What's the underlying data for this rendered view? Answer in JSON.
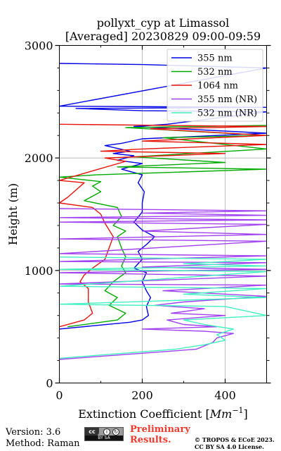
{
  "chart_data": {
    "type": "line",
    "title": "pollyxt_cyp at Limassol",
    "subtitle": "[Averaged] 20230829 09:00-09:59",
    "xlabel": "Extinction Coefficient [",
    "xlabel_unit": "Mm",
    "xlabel_exp": "−1",
    "xlabel_close": "]",
    "ylabel": "Height (m)",
    "xlim": [
      0,
      500
    ],
    "ylim": [
      0,
      3000
    ],
    "xticks": [
      0,
      200,
      400
    ],
    "yticks": [
      0,
      1000,
      2000,
      3000
    ],
    "x_minor_step": 100,
    "y_minor_step": 200,
    "grid": true,
    "legend_position": "top-right",
    "series": [
      {
        "name": "355 nm",
        "color": "#0000e6",
        "points": [
          [
            0,
            2840
          ],
          [
            200,
            2830
          ],
          [
            500,
            2800
          ],
          [
            0,
            2460
          ],
          [
            500,
            2450
          ],
          [
            40,
            2440
          ],
          [
            200,
            2420
          ],
          [
            500,
            2410
          ],
          [
            260,
            2300
          ],
          [
            180,
            2280
          ],
          [
            500,
            2220
          ],
          [
            200,
            2170
          ],
          [
            150,
            2130
          ],
          [
            110,
            2110
          ],
          [
            170,
            2060
          ],
          [
            130,
            2040
          ],
          [
            180,
            2020
          ],
          [
            140,
            1980
          ],
          [
            200,
            1950
          ],
          [
            150,
            1900
          ],
          [
            200,
            1850
          ],
          [
            190,
            1780
          ],
          [
            205,
            1700
          ],
          [
            200,
            1600
          ],
          [
            200,
            1520
          ],
          [
            180,
            1430
          ],
          [
            200,
            1360
          ],
          [
            230,
            1300
          ],
          [
            210,
            1230
          ],
          [
            190,
            1170
          ],
          [
            200,
            1100
          ],
          [
            180,
            1020
          ],
          [
            210,
            980
          ],
          [
            200,
            900
          ],
          [
            210,
            820
          ],
          [
            220,
            760
          ],
          [
            210,
            680
          ],
          [
            215,
            600
          ],
          [
            200,
            560
          ],
          [
            170,
            540
          ],
          [
            0,
            480
          ]
        ]
      },
      {
        "name": "532 nm",
        "color": "#00aa00",
        "points": [
          [
            500,
            2290
          ],
          [
            160,
            2270
          ],
          [
            500,
            2200
          ],
          [
            250,
            2180
          ],
          [
            500,
            2080
          ],
          [
            180,
            2010
          ],
          [
            400,
            1960
          ],
          [
            140,
            1920
          ],
          [
            500,
            1900
          ],
          [
            90,
            1850
          ],
          [
            0,
            1830
          ],
          [
            100,
            1790
          ],
          [
            80,
            1750
          ],
          [
            100,
            1700
          ],
          [
            60,
            1620
          ],
          [
            140,
            1560
          ],
          [
            150,
            1480
          ],
          [
            130,
            1400
          ],
          [
            160,
            1350
          ],
          [
            140,
            1300
          ],
          [
            150,
            1200
          ],
          [
            160,
            1120
          ],
          [
            150,
            1040
          ],
          [
            160,
            980
          ],
          [
            130,
            900
          ],
          [
            110,
            820
          ],
          [
            140,
            760
          ],
          [
            120,
            690
          ],
          [
            160,
            620
          ],
          [
            140,
            560
          ],
          [
            20,
            500
          ]
        ]
      },
      {
        "name": "1064 nm",
        "color": "#e6140a",
        "points": [
          [
            0,
            2300
          ],
          [
            500,
            2280
          ],
          [
            220,
            2260
          ],
          [
            500,
            2200
          ],
          [
            200,
            2150
          ],
          [
            500,
            2120
          ],
          [
            200,
            2080
          ],
          [
            100,
            2060
          ],
          [
            400,
            2040
          ],
          [
            110,
            2000
          ],
          [
            160,
            1970
          ],
          [
            0,
            1800
          ],
          [
            60,
            1780
          ],
          [
            20,
            1650
          ],
          [
            0,
            1600
          ],
          [
            80,
            1560
          ],
          [
            100,
            1500
          ],
          [
            110,
            1420
          ],
          [
            130,
            1300
          ],
          [
            120,
            1200
          ],
          [
            110,
            1100
          ],
          [
            80,
            1020
          ],
          [
            60,
            960
          ],
          [
            50,
            900
          ],
          [
            70,
            840
          ],
          [
            70,
            720
          ],
          [
            80,
            620
          ],
          [
            60,
            560
          ],
          [
            0,
            500
          ]
        ]
      },
      {
        "name": "355 nm (NR)",
        "color": "#a040f0",
        "points": [
          [
            0,
            1550
          ],
          [
            500,
            1530
          ],
          [
            200,
            1510
          ],
          [
            500,
            1490
          ],
          [
            0,
            1470
          ],
          [
            500,
            1450
          ],
          [
            0,
            1430
          ],
          [
            500,
            1410
          ],
          [
            200,
            1350
          ],
          [
            500,
            1320
          ],
          [
            0,
            1280
          ],
          [
            500,
            1260
          ],
          [
            0,
            1150
          ],
          [
            500,
            1130
          ],
          [
            0,
            1080
          ],
          [
            500,
            1070
          ],
          [
            200,
            1030
          ],
          [
            500,
            1010
          ],
          [
            0,
            980
          ],
          [
            500,
            950
          ],
          [
            0,
            880
          ],
          [
            500,
            870
          ],
          [
            250,
            820
          ],
          [
            500,
            770
          ],
          [
            300,
            720
          ],
          [
            230,
            690
          ],
          [
            350,
            660
          ],
          [
            270,
            620
          ],
          [
            400,
            600
          ],
          [
            260,
            560
          ],
          [
            300,
            520
          ],
          [
            380,
            500
          ],
          [
            200,
            480
          ],
          [
            350,
            460
          ],
          [
            420,
            440
          ],
          [
            380,
            400
          ],
          [
            370,
            360
          ],
          [
            330,
            300
          ],
          [
            0,
            210
          ]
        ]
      },
      {
        "name": "532 nm (NR)",
        "color": "#40f0c0",
        "points": [
          [
            0,
            1120
          ],
          [
            500,
            1100
          ],
          [
            300,
            1060
          ],
          [
            500,
            1040
          ],
          [
            0,
            1010
          ],
          [
            500,
            990
          ],
          [
            0,
            860
          ],
          [
            500,
            840
          ],
          [
            300,
            790
          ],
          [
            500,
            760
          ],
          [
            0,
            700
          ],
          [
            400,
            680
          ],
          [
            500,
            600
          ],
          [
            300,
            560
          ],
          [
            350,
            520
          ],
          [
            420,
            480
          ],
          [
            380,
            430
          ],
          [
            400,
            380
          ],
          [
            350,
            340
          ],
          [
            280,
            300
          ],
          [
            0,
            220
          ]
        ]
      }
    ]
  },
  "footer": {
    "version": "Version: 3.6",
    "method": "Method: Raman",
    "cc_badge": "cc",
    "cc_by_sa": "BY SA",
    "preliminary_line1": "Preliminary",
    "preliminary_line2": "Results.",
    "copyright_line1": "© TROPOS & ECoE 2023.",
    "copyright_line2": "CC BY SA 4.0 License."
  }
}
